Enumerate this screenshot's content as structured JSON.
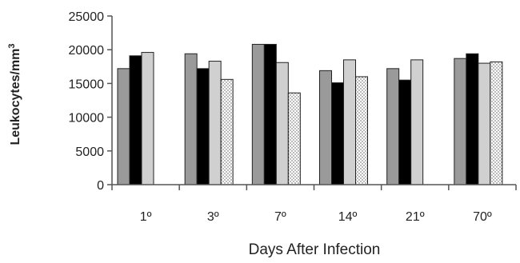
{
  "chart_data": {
    "type": "bar",
    "title": "",
    "xlabel": "Days After Infection",
    "ylabel_main": "Leukocytes/mm",
    "ylabel_sup": "3",
    "ylim": [
      0,
      25000
    ],
    "yticks": [
      0,
      5000,
      10000,
      15000,
      20000,
      25000
    ],
    "ytick_labels": [
      "0",
      "5000",
      "10000",
      "15000",
      "20000",
      "25000"
    ],
    "categories": [
      "1º",
      "3º",
      "7º",
      "14º",
      "21º",
      "70º"
    ],
    "grid": false,
    "legend": "none",
    "series": [
      {
        "fill": "#9a9a9a",
        "pattern": "solid",
        "values": [
          17200,
          19400,
          20800,
          16900,
          17200,
          18700
        ]
      },
      {
        "fill": "#000000",
        "pattern": "solid",
        "values": [
          19100,
          17200,
          20800,
          15100,
          15500,
          19400
        ]
      },
      {
        "fill": "#d0d0d0",
        "pattern": "solid",
        "values": [
          19600,
          18300,
          18100,
          18500,
          18500,
          18000
        ]
      },
      {
        "fill": "#ffffff",
        "pattern": "dots",
        "values": [
          null,
          15600,
          13600,
          16000,
          null,
          18200
        ]
      }
    ]
  }
}
